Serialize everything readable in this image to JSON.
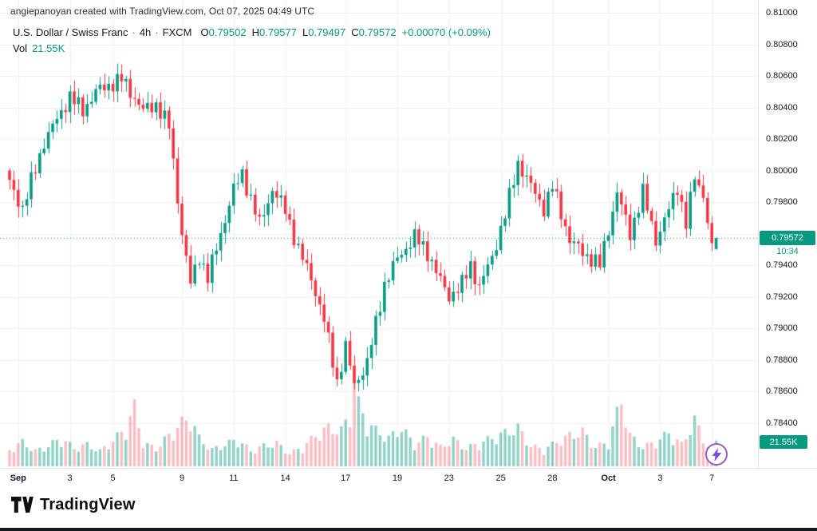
{
  "attribution": "angiepanoyan created with TradingView.com, Oct 07, 2025 04:49 UTC",
  "legend": {
    "symbol": "U.S. Dollar / Swiss Franc",
    "separator": "·",
    "interval": "4h",
    "exchange": "FXCM",
    "ohlc": [
      {
        "prefix": "O",
        "value": "0.79502"
      },
      {
        "prefix": "H",
        "value": "0.79577"
      },
      {
        "prefix": "L",
        "value": "0.79497"
      },
      {
        "prefix": "C",
        "value": "0.79572"
      }
    ],
    "change": "+0.00070 (+0.09%)",
    "volume_label": "Vol",
    "volume_value": "21.55K"
  },
  "price_axis": {
    "ticks": [
      "0.81000",
      "0.80800",
      "0.80600",
      "0.80400",
      "0.80200",
      "0.80000",
      "0.79800",
      "0.79400",
      "0.79200",
      "0.79000",
      "0.78800",
      "0.78600",
      "0.78400"
    ],
    "last_price_badge": "0.79572",
    "countdown": "10:34",
    "volume_badge": "21.55K"
  },
  "time_axis": {
    "labels": [
      {
        "label": "Sep",
        "index": 2,
        "bold": true
      },
      {
        "label": "3",
        "index": 14,
        "bold": false
      },
      {
        "label": "5",
        "index": 24,
        "bold": false
      },
      {
        "label": "9",
        "index": 40,
        "bold": false
      },
      {
        "label": "11",
        "index": 52,
        "bold": false
      },
      {
        "label": "14",
        "index": 64,
        "bold": false
      },
      {
        "label": "17",
        "index": 78,
        "bold": false
      },
      {
        "label": "19",
        "index": 90,
        "bold": false
      },
      {
        "label": "23",
        "index": 102,
        "bold": false
      },
      {
        "label": "25",
        "index": 114,
        "bold": false
      },
      {
        "label": "28",
        "index": 126,
        "bold": false
      },
      {
        "label": "Oct",
        "index": 139,
        "bold": true
      },
      {
        "label": "3",
        "index": 151,
        "bold": false
      },
      {
        "label": "7",
        "index": 163,
        "bold": false
      }
    ]
  },
  "footer": {
    "brand": "TradingView"
  },
  "colors": {
    "up": "#089981",
    "down": "#f23645",
    "vol_up": "rgba(8,153,129,0.45)",
    "vol_down": "rgba(242,54,69,0.33)",
    "grid": "#edeff3",
    "axis_text": "#131722",
    "badge_bg": "#089981"
  },
  "chart_data": {
    "type": "candlestick",
    "symbol": "USD/CHF",
    "title": "U.S. Dollar / Swiss Franc",
    "interval": "4h",
    "exchange": "FXCM",
    "y_range": [
      0.784,
      0.81
    ],
    "grid_step": 0.002,
    "x_range_dates": [
      "Sep 1",
      "Oct 7"
    ],
    "last": {
      "open": 0.79502,
      "high": 0.79577,
      "low": 0.79497,
      "close": 0.79572,
      "change": "+0.00070",
      "change_pct": "+0.09%",
      "volume_k": 21.55
    },
    "candle_count": 165,
    "price_anchors": [
      [
        0,
        0.7992
      ],
      [
        3,
        0.7976
      ],
      [
        8,
        0.8018
      ],
      [
        14,
        0.8047
      ],
      [
        17,
        0.8038
      ],
      [
        20,
        0.805
      ],
      [
        23,
        0.8054
      ],
      [
        26,
        0.8058
      ],
      [
        28,
        0.805
      ],
      [
        31,
        0.8038
      ],
      [
        34,
        0.8042
      ],
      [
        37,
        0.8028
      ],
      [
        40,
        0.796
      ],
      [
        42,
        0.7928
      ],
      [
        44,
        0.7946
      ],
      [
        46,
        0.7932
      ],
      [
        52,
        0.7988
      ],
      [
        54,
        0.7998
      ],
      [
        58,
        0.7966
      ],
      [
        61,
        0.7988
      ],
      [
        64,
        0.7975
      ],
      [
        67,
        0.795
      ],
      [
        70,
        0.7932
      ],
      [
        73,
        0.7905
      ],
      [
        76,
        0.7866
      ],
      [
        78,
        0.7888
      ],
      [
        80,
        0.7864
      ],
      [
        83,
        0.7878
      ],
      [
        87,
        0.7928
      ],
      [
        90,
        0.7944
      ],
      [
        94,
        0.7958
      ],
      [
        97,
        0.7948
      ],
      [
        100,
        0.793
      ],
      [
        102,
        0.792
      ],
      [
        105,
        0.7928
      ],
      [
        107,
        0.794
      ],
      [
        109,
        0.7926
      ],
      [
        112,
        0.7945
      ],
      [
        115,
        0.7972
      ],
      [
        118,
        0.8005
      ],
      [
        121,
        0.799
      ],
      [
        124,
        0.7976
      ],
      [
        126,
        0.799
      ],
      [
        130,
        0.7956
      ],
      [
        133,
        0.7948
      ],
      [
        137,
        0.794
      ],
      [
        141,
        0.7986
      ],
      [
        144,
        0.796
      ],
      [
        147,
        0.7986
      ],
      [
        150,
        0.7956
      ],
      [
        152,
        0.7968
      ],
      [
        155,
        0.799
      ],
      [
        157,
        0.7966
      ],
      [
        159,
        0.7996
      ],
      [
        161,
        0.7985
      ],
      [
        163,
        0.795
      ],
      [
        164,
        0.79572
      ]
    ],
    "volume_anchors": [
      [
        0,
        13
      ],
      [
        3,
        19
      ],
      [
        6,
        12
      ],
      [
        9,
        16
      ],
      [
        12,
        22
      ],
      [
        15,
        14
      ],
      [
        18,
        17
      ],
      [
        21,
        12
      ],
      [
        24,
        20
      ],
      [
        27,
        30
      ],
      [
        29,
        46
      ],
      [
        31,
        18
      ],
      [
        34,
        14
      ],
      [
        37,
        24
      ],
      [
        40,
        34
      ],
      [
        42,
        38
      ],
      [
        44,
        22
      ],
      [
        47,
        13
      ],
      [
        50,
        17
      ],
      [
        53,
        21
      ],
      [
        56,
        12
      ],
      [
        59,
        16
      ],
      [
        62,
        18
      ],
      [
        65,
        10
      ],
      [
        68,
        15
      ],
      [
        71,
        24
      ],
      [
        74,
        30
      ],
      [
        77,
        28
      ],
      [
        79,
        40
      ],
      [
        80,
        76
      ],
      [
        81,
        48
      ],
      [
        83,
        34
      ],
      [
        85,
        28
      ],
      [
        88,
        22
      ],
      [
        91,
        30
      ],
      [
        94,
        17
      ],
      [
        97,
        23
      ],
      [
        100,
        15
      ],
      [
        103,
        21
      ],
      [
        106,
        14
      ],
      [
        109,
        18
      ],
      [
        112,
        22
      ],
      [
        115,
        26
      ],
      [
        118,
        30
      ],
      [
        121,
        16
      ],
      [
        124,
        13
      ],
      [
        127,
        19
      ],
      [
        130,
        24
      ],
      [
        133,
        27
      ],
      [
        136,
        15
      ],
      [
        139,
        19
      ],
      [
        142,
        52
      ],
      [
        144,
        24
      ],
      [
        147,
        15
      ],
      [
        150,
        19
      ],
      [
        153,
        26
      ],
      [
        156,
        17
      ],
      [
        159,
        36
      ],
      [
        161,
        22
      ],
      [
        163,
        11
      ],
      [
        164,
        21.55
      ]
    ]
  }
}
